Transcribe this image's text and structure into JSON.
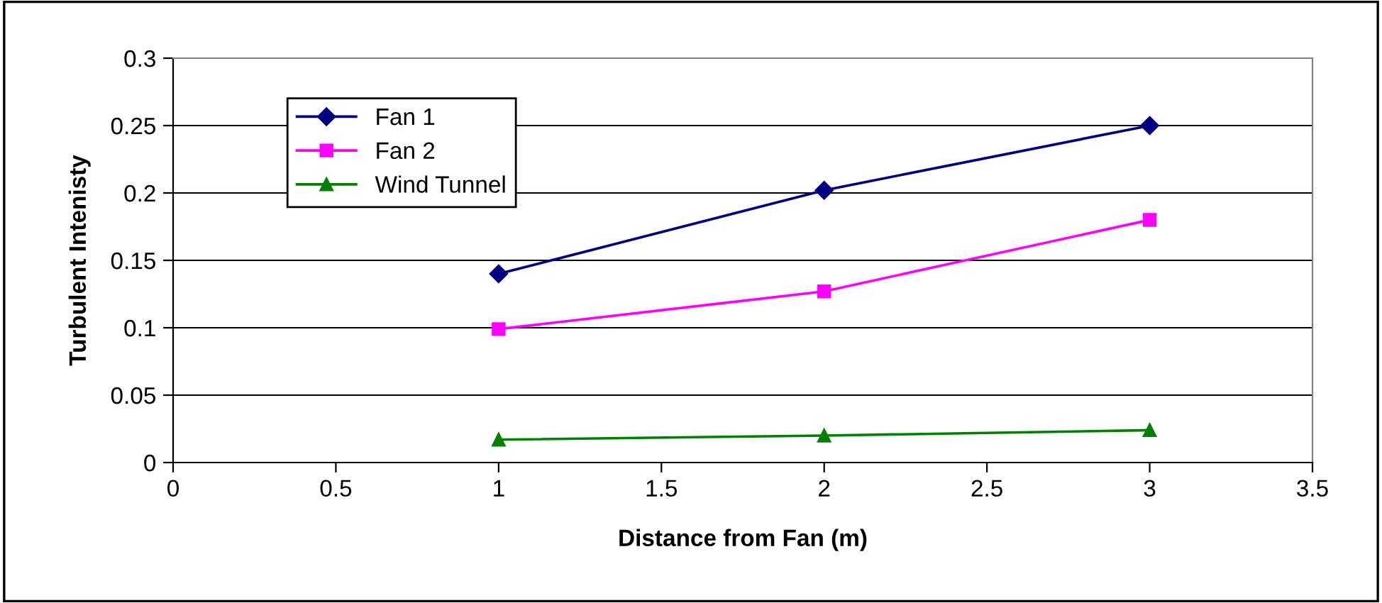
{
  "chart_data": {
    "type": "line",
    "xlabel": "Distance from Fan (m)",
    "ylabel": "Turbulent Intenisty",
    "x": [
      1,
      2,
      3
    ],
    "series": [
      {
        "name": "Fan 1",
        "color": "#000080",
        "marker": "diamond",
        "values": [
          0.14,
          0.202,
          0.25
        ]
      },
      {
        "name": "Fan 2",
        "color": "#ff00ff",
        "marker": "square",
        "values": [
          0.099,
          0.127,
          0.18
        ]
      },
      {
        "name": "Wind Tunnel",
        "color": "#008000",
        "marker": "triangle",
        "values": [
          0.017,
          0.02,
          0.024
        ]
      }
    ],
    "xlim": [
      0,
      3.5
    ],
    "xticks": [
      0,
      0.5,
      1,
      1.5,
      2,
      2.5,
      3,
      3.5
    ],
    "ylim": [
      0,
      0.3
    ],
    "yticks": [
      0,
      0.05,
      0.1,
      0.15,
      0.2,
      0.25,
      0.3
    ],
    "grid": "y",
    "legend": "top left",
    "line_style": "solid"
  }
}
